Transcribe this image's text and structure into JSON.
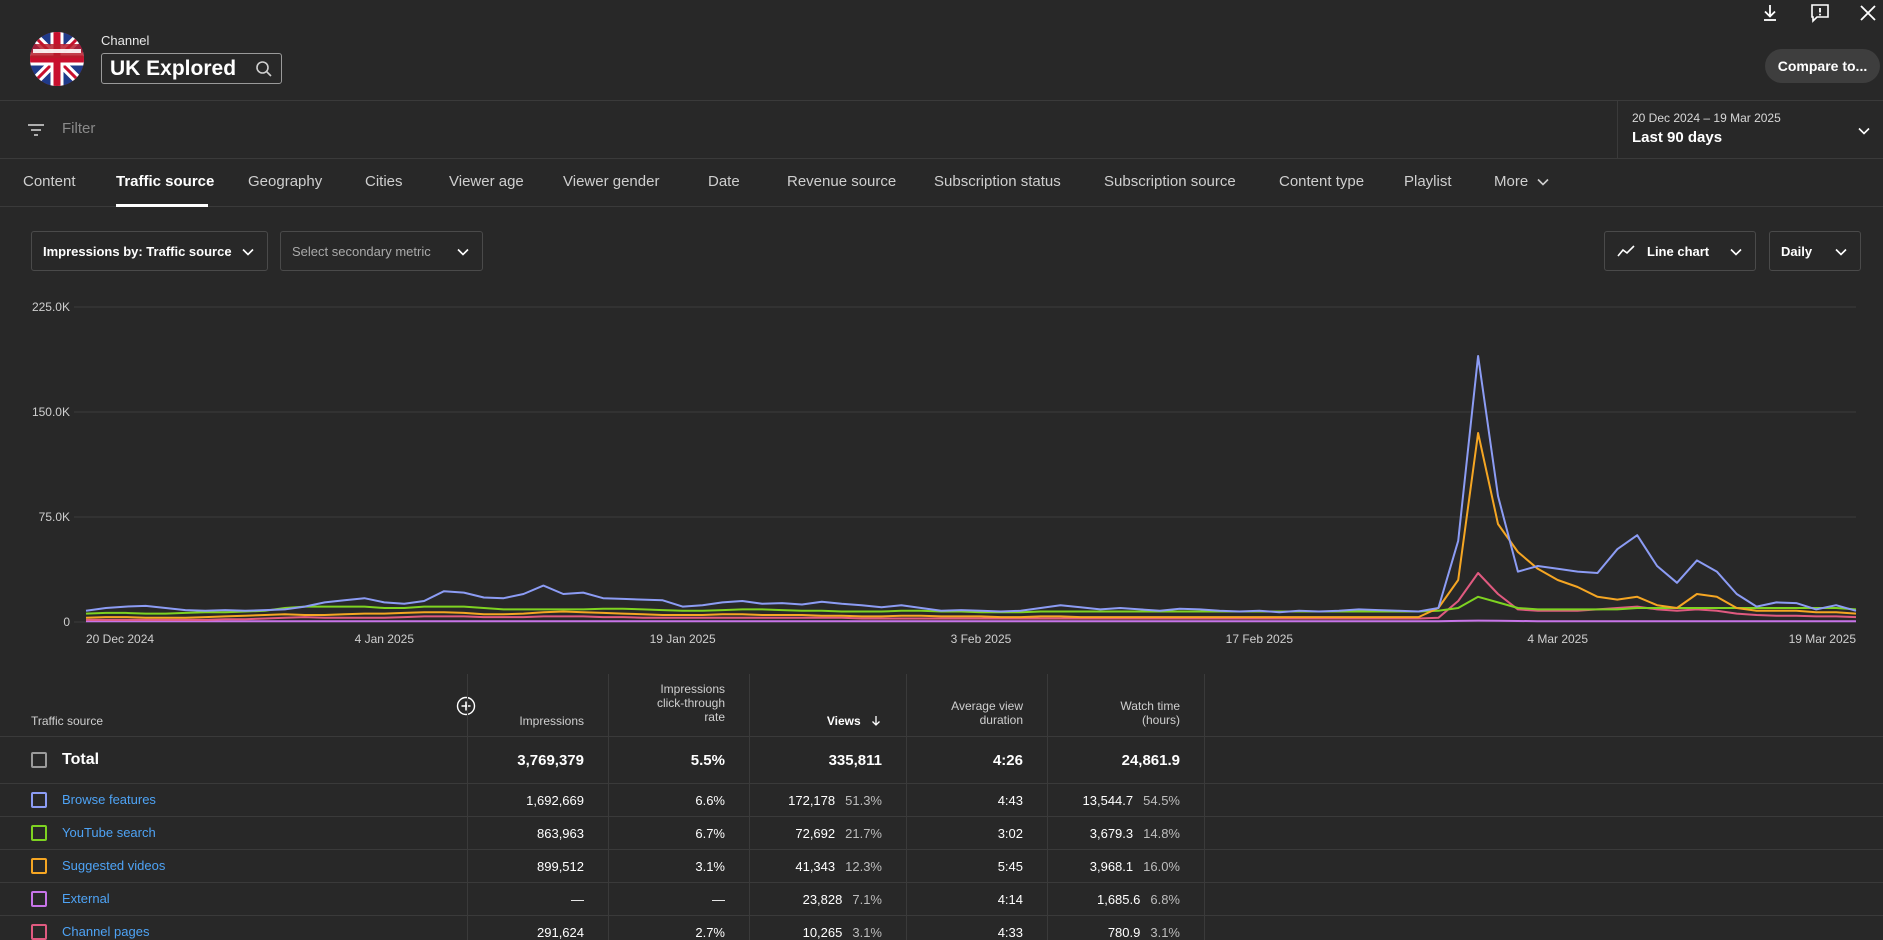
{
  "header": {
    "channel_label": "Channel",
    "channel_name": "UK Explored",
    "compare_label": "Compare to..."
  },
  "icons": {
    "download": "download-icon",
    "feedback": "feedback-icon",
    "close": "close-icon",
    "search": "search-icon",
    "filter": "filter-icon"
  },
  "filter": {
    "placeholder": "Filter",
    "date_range": "20 Dec 2024 – 19 Mar 2025",
    "date_period": "Last 90 days"
  },
  "tabs": [
    {
      "label": "Content"
    },
    {
      "label": "Traffic source"
    },
    {
      "label": "Geography"
    },
    {
      "label": "Cities"
    },
    {
      "label": "Viewer age"
    },
    {
      "label": "Viewer gender"
    },
    {
      "label": "Date"
    },
    {
      "label": "Revenue source"
    },
    {
      "label": "Subscription status"
    },
    {
      "label": "Subscription source"
    },
    {
      "label": "Content type"
    },
    {
      "label": "Playlist"
    },
    {
      "label": "More"
    }
  ],
  "controls": {
    "primary_metric": "Impressions by: Traffic source",
    "secondary_metric": "Select secondary metric",
    "chart_type": "Line chart",
    "interval": "Daily"
  },
  "chart_data": {
    "type": "line",
    "ylim": [
      0,
      225000
    ],
    "yticks": [
      "225.0K",
      "150.0K",
      "75.0K",
      "0"
    ],
    "ytick_values": [
      225000,
      150000,
      75000,
      0
    ],
    "xticks": [
      "20 Dec 2024",
      "4 Jan 2025",
      "19 Jan 2025",
      "3 Feb 2025",
      "17 Feb 2025",
      "4 Mar 2025",
      "19 Mar 2025"
    ],
    "xtick_index": [
      0,
      15,
      30,
      45,
      59,
      74,
      89
    ],
    "n_points": 90,
    "grid": true,
    "series": [
      {
        "color": "#8c9cf4",
        "values": [
          8000,
          10000,
          11000,
          11500,
          10000,
          8500,
          8000,
          8500,
          8000,
          8500,
          9000,
          11000,
          14000,
          15500,
          17000,
          14000,
          13000,
          15000,
          22000,
          21000,
          17500,
          17000,
          20000,
          26000,
          20000,
          21000,
          17000,
          16500,
          16000,
          15500,
          11000,
          12000,
          14000,
          15000,
          13000,
          13500,
          12500,
          14500,
          13000,
          12000,
          10500,
          12000,
          10000,
          8000,
          8500,
          8000,
          7500,
          8000,
          10000,
          12000,
          10500,
          9000,
          10000,
          9000,
          8000,
          9500,
          9000,
          8000,
          7500,
          8000,
          7000,
          8000,
          7500,
          8000,
          9000,
          8500,
          8000,
          7500,
          10000,
          58000,
          190000,
          90000,
          36000,
          40000,
          38000,
          36000,
          35000,
          52000,
          62000,
          40000,
          28000,
          44000,
          36000,
          20000,
          11000,
          14000,
          13500,
          9000,
          12000,
          8000
        ]
      },
      {
        "color": "#f5a623",
        "values": [
          3000,
          3500,
          3500,
          3000,
          3000,
          3000,
          3500,
          4000,
          4500,
          5000,
          5500,
          5000,
          5000,
          5500,
          6000,
          6000,
          6500,
          7000,
          7000,
          6500,
          5500,
          5500,
          6000,
          7000,
          7500,
          7000,
          6500,
          6000,
          5500,
          5000,
          5000,
          5000,
          5500,
          5500,
          5000,
          5000,
          5000,
          4500,
          4500,
          4000,
          4000,
          4500,
          4500,
          4000,
          4000,
          4000,
          3500,
          3500,
          4000,
          4000,
          3500,
          3500,
          3500,
          3500,
          3500,
          3500,
          3500,
          3500,
          3500,
          3500,
          3500,
          3500,
          3500,
          3500,
          3500,
          3500,
          3500,
          3500,
          10000,
          30000,
          135000,
          70000,
          50000,
          38000,
          30000,
          25000,
          18000,
          16000,
          18000,
          12000,
          10000,
          20000,
          18000,
          10000,
          8000,
          8000,
          8000,
          7000,
          7000,
          6000
        ]
      },
      {
        "color": "#7ed321",
        "values": [
          6000,
          6500,
          6500,
          6000,
          6000,
          6500,
          7000,
          7000,
          7500,
          8000,
          10000,
          11000,
          11000,
          11000,
          11000,
          10000,
          10000,
          11000,
          11000,
          11000,
          10000,
          9000,
          9000,
          9000,
          9000,
          9000,
          9500,
          9500,
          9000,
          8500,
          8000,
          8000,
          8500,
          9000,
          9000,
          8500,
          8000,
          8000,
          7500,
          7500,
          7500,
          8000,
          8000,
          7500,
          7500,
          7000,
          7000,
          7000,
          7500,
          7500,
          7500,
          7500,
          7500,
          7500,
          7500,
          7500,
          7500,
          7500,
          7500,
          7500,
          7500,
          7500,
          7500,
          7500,
          7500,
          7500,
          7500,
          7500,
          8000,
          10000,
          18000,
          14000,
          10000,
          9000,
          9000,
          9000,
          9000,
          9000,
          10000,
          10000,
          10000,
          10000,
          10000,
          10000,
          10000,
          10000,
          10000,
          10000,
          10000,
          9000
        ]
      },
      {
        "color": "#e05a80",
        "values": [
          1500,
          1500,
          1500,
          1500,
          1500,
          1500,
          1500,
          2000,
          2000,
          2500,
          3000,
          3500,
          3000,
          3000,
          3000,
          3000,
          3500,
          4000,
          4000,
          4000,
          3500,
          3500,
          3500,
          4000,
          4000,
          4000,
          3500,
          3500,
          3000,
          3000,
          3000,
          3000,
          3000,
          3000,
          3000,
          3000,
          3000,
          3000,
          3000,
          2500,
          2500,
          2500,
          2500,
          2500,
          2500,
          2500,
          2500,
          2500,
          2500,
          2500,
          2500,
          2500,
          2500,
          2500,
          2500,
          2500,
          2500,
          2500,
          2500,
          2500,
          2500,
          2500,
          2500,
          2500,
          2500,
          2500,
          2500,
          2500,
          3000,
          15000,
          35000,
          20000,
          9000,
          8000,
          8000,
          8000,
          9000,
          10000,
          11000,
          9000,
          8000,
          9000,
          8000,
          6000,
          5000,
          4500,
          4500,
          4000,
          4000,
          3500
        ]
      },
      {
        "color": "#c774e8",
        "values": [
          500,
          500,
          500,
          500,
          500,
          500,
          500,
          500,
          500,
          500,
          500,
          500,
          500,
          500,
          500,
          500,
          500,
          500,
          500,
          500,
          500,
          500,
          500,
          500,
          500,
          500,
          500,
          500,
          500,
          500,
          500,
          500,
          500,
          500,
          500,
          500,
          500,
          500,
          500,
          500,
          500,
          500,
          500,
          500,
          500,
          500,
          500,
          500,
          500,
          500,
          500,
          500,
          500,
          500,
          500,
          500,
          500,
          500,
          500,
          500,
          500,
          500,
          500,
          500,
          500,
          500,
          500,
          500,
          500,
          800,
          1000,
          900,
          700,
          600,
          600,
          600,
          600,
          600,
          600,
          600,
          600,
          600,
          600,
          600,
          600,
          600,
          600,
          600,
          600,
          600
        ]
      }
    ]
  },
  "table": {
    "headers": {
      "source": "Traffic source",
      "impressions": "Impressions",
      "ctr_l1": "Impressions",
      "ctr_l2": "click-through",
      "ctr_l3": "rate",
      "views": "Views",
      "avd_l1": "Average view",
      "avd_l2": "duration",
      "wt_l1": "Watch time",
      "wt_l2": "(hours)"
    },
    "total": {
      "label": "Total",
      "impressions": "3,769,379",
      "ctr": "5.5%",
      "views": "335,811",
      "avd": "4:26",
      "watch_time": "24,861.9"
    },
    "rows": [
      {
        "name": "Browse features",
        "color": "#8c9cf4",
        "impressions": "1,692,669",
        "ctr": "6.6%",
        "views": "172,178",
        "views_pct": "51.3%",
        "avd": "4:43",
        "watch_time": "13,544.7",
        "wt_pct": "54.5%"
      },
      {
        "name": "YouTube search",
        "color": "#7ed321",
        "impressions": "863,963",
        "ctr": "6.7%",
        "views": "72,692",
        "views_pct": "21.7%",
        "avd": "3:02",
        "watch_time": "3,679.3",
        "wt_pct": "14.8%"
      },
      {
        "name": "Suggested videos",
        "color": "#f5a623",
        "impressions": "899,512",
        "ctr": "3.1%",
        "views": "41,343",
        "views_pct": "12.3%",
        "avd": "5:45",
        "watch_time": "3,968.1",
        "wt_pct": "16.0%"
      },
      {
        "name": "External",
        "color": "#c774e8",
        "impressions": "—",
        "ctr": "—",
        "views": "23,828",
        "views_pct": "7.1%",
        "avd": "4:14",
        "watch_time": "1,685.6",
        "wt_pct": "6.8%"
      },
      {
        "name": "Channel pages",
        "color": "#e05a80",
        "impressions": "291,624",
        "ctr": "2.7%",
        "views": "10,265",
        "views_pct": "3.1%",
        "avd": "4:33",
        "watch_time": "780.9",
        "wt_pct": "3.1%"
      }
    ]
  }
}
